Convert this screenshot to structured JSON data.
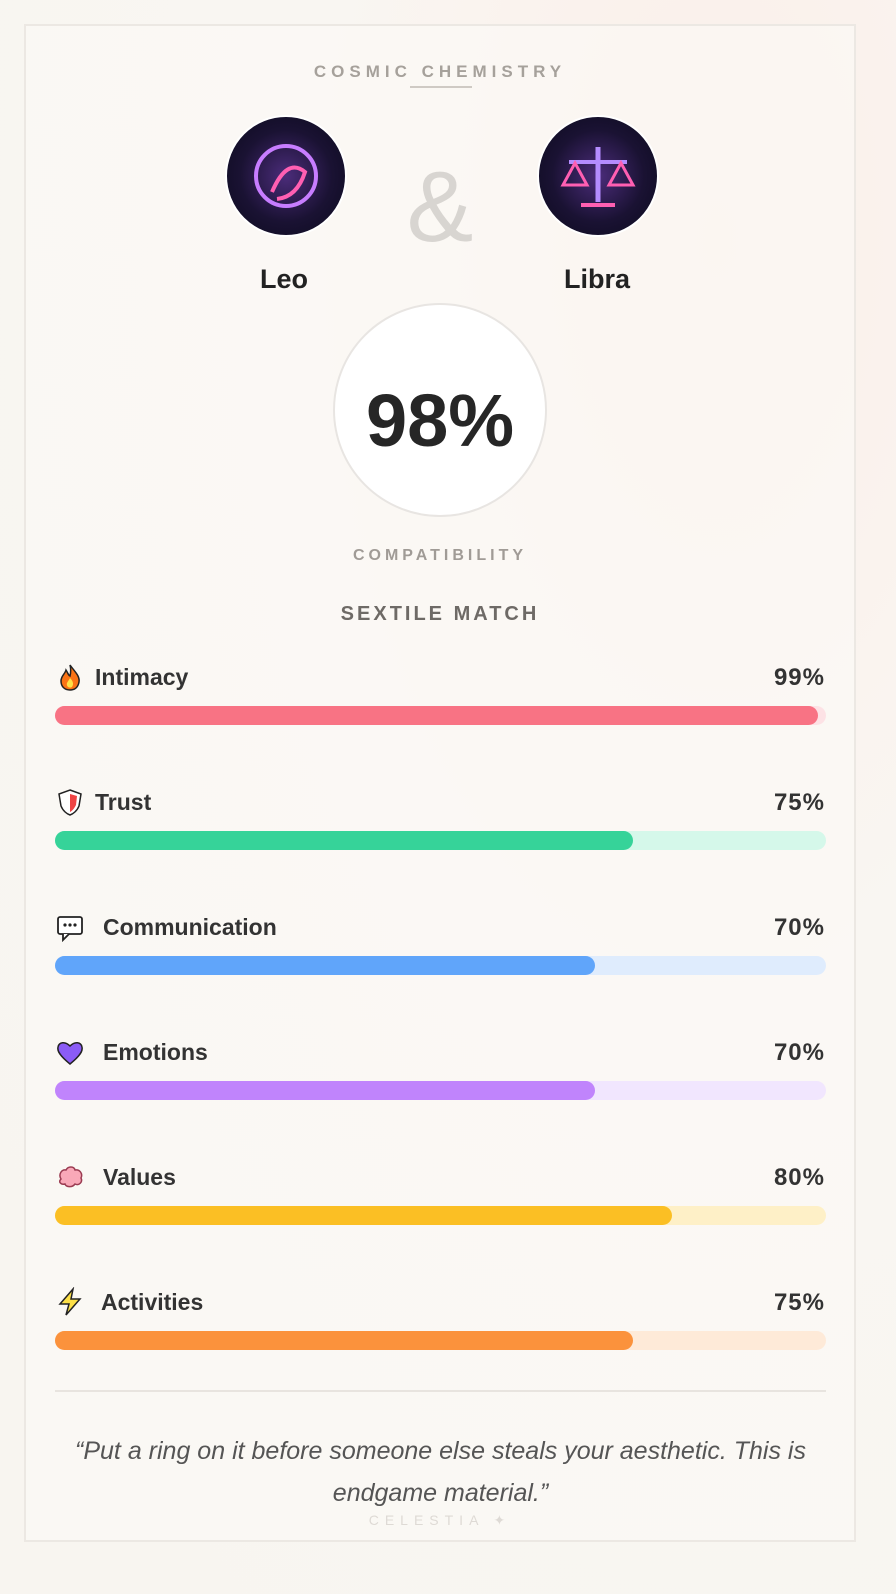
{
  "header": {
    "title": "COSMIC CHEMISTRY"
  },
  "pair": {
    "left": "Leo",
    "joiner": "&",
    "right": "Libra"
  },
  "score": {
    "value": "98%",
    "caption": "COMPATIBILITY",
    "aspect": "SEXTILE MATCH"
  },
  "metrics": [
    {
      "name": "Intimacy",
      "value": 99,
      "label": "99%",
      "color": "#f87384",
      "track_color": "#fde2e5"
    },
    {
      "name": "Trust",
      "value": 75,
      "label": "75%",
      "color": "#36d399",
      "track_color": "#d5f8ea"
    },
    {
      "name": "Communication",
      "value": 70,
      "label": "70%",
      "color": "#60a5fa",
      "track_color": "#dfecfd"
    },
    {
      "name": "Emotions",
      "value": 70,
      "label": "70%",
      "color": "#c084fc",
      "track_color": "#f1e6fe"
    },
    {
      "name": "Values",
      "value": 80,
      "label": "80%",
      "color": "#fbbf24",
      "track_color": "#fef0c7"
    },
    {
      "name": "Activities",
      "value": 75,
      "label": "75%",
      "color": "#fb923c",
      "track_color": "#feead8"
    }
  ],
  "quote": "“Put a ring on it before someone else steals your aesthetic. This is endgame material.”",
  "footer": "CELESTIA ✦"
}
